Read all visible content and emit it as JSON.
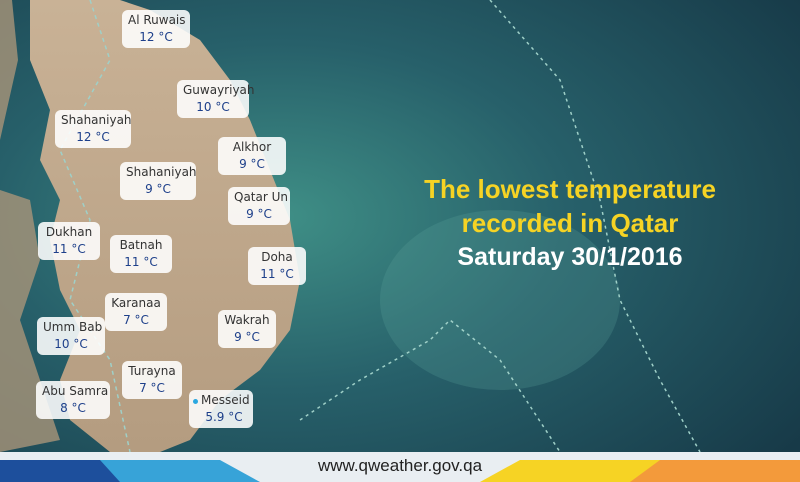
{
  "headline": [
    "The lowest temperature",
    "recorded in Qatar",
    "Saturday 30/1/2016"
  ],
  "stations": [
    {
      "name": "Al Ruwais",
      "temp": "12 °C"
    },
    {
      "name": "Guwayriyah",
      "temp": "10 °C"
    },
    {
      "name": "Shahaniyah",
      "temp": "12 °C"
    },
    {
      "name": "Alkhor",
      "temp": "9 °C"
    },
    {
      "name": "Shahaniyah",
      "temp": "9 °C"
    },
    {
      "name": "Qatar Un",
      "temp": "9 °C"
    },
    {
      "name": "Dukhan",
      "temp": "11 °C"
    },
    {
      "name": "Batnah",
      "temp": "11 °C"
    },
    {
      "name": "Doha",
      "temp": "11 °C"
    },
    {
      "name": "Karanaa",
      "temp": "7 °C"
    },
    {
      "name": "Umm Bab",
      "temp": "10 °C"
    },
    {
      "name": "Wakrah",
      "temp": "9 °C"
    },
    {
      "name": "Turayna",
      "temp": "7 °C"
    },
    {
      "name": "Abu Samra",
      "temp": "8 °C"
    },
    {
      "name": "Messeid",
      "temp": "5.9 °C"
    }
  ],
  "footer": "www.qweather.gov.qa"
}
